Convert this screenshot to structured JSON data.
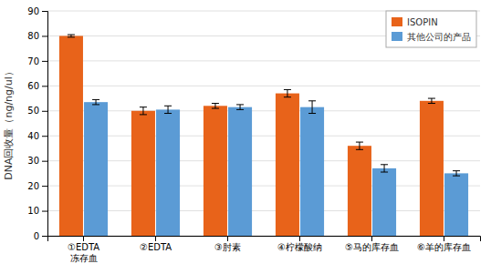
{
  "chart_data": {
    "type": "bar",
    "categories": [
      "①EDTA\n冻存血",
      "②EDTA",
      "③肘素",
      "④柠檬酸纳",
      "⑤马的库存血",
      "⑥羊的库存血"
    ],
    "series": [
      {
        "name": "ISOPIN",
        "color": "#E8631A",
        "values": [
          80,
          50,
          52,
          57,
          36,
          54
        ],
        "errors": [
          0.5,
          1.5,
          1.0,
          1.5,
          1.5,
          1.0
        ]
      },
      {
        "name": "其他公司的产品",
        "color": "#5B9BD5",
        "values": [
          53.5,
          50.5,
          51.5,
          51.5,
          27,
          25
        ],
        "errors": [
          1.0,
          1.5,
          1.0,
          2.5,
          1.5,
          1.0
        ]
      }
    ],
    "ylabel": "DNA回收量（ng/ng/ul）",
    "ylim": [
      0,
      90
    ],
    "yticks": [
      0,
      10,
      20,
      30,
      40,
      50,
      60,
      70,
      80,
      90
    ],
    "grid": true,
    "legend": "upper right"
  }
}
